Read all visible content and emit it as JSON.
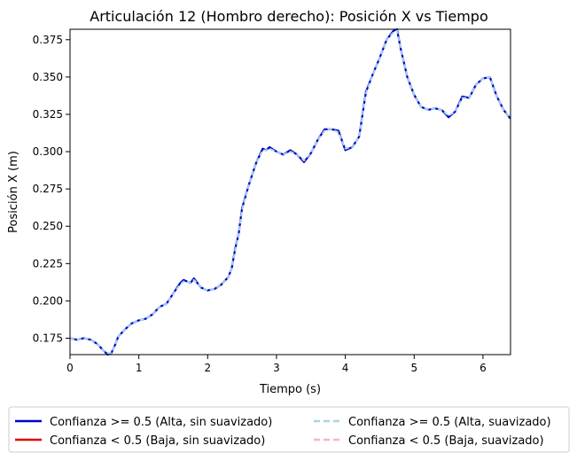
{
  "chart_data": {
    "type": "line",
    "title": "Articulación 12 (Hombro derecho): Posición X vs Tiempo",
    "xlabel": "Tiempo (s)",
    "ylabel": "Posición X (m)",
    "xlim": [
      0,
      6.4
    ],
    "ylim": [
      0.164,
      0.382
    ],
    "xticks": [
      0,
      1,
      2,
      3,
      4,
      5,
      6
    ],
    "xtick_labels": [
      "0",
      "1",
      "2",
      "3",
      "4",
      "5",
      "6"
    ],
    "yticks": [
      0.175,
      0.2,
      0.225,
      0.25,
      0.275,
      0.3,
      0.325,
      0.35,
      0.375
    ],
    "ytick_labels": [
      "0.175",
      "0.200",
      "0.225",
      "0.250",
      "0.275",
      "0.300",
      "0.325",
      "0.350",
      "0.375"
    ],
    "grid": false,
    "legend_position": "bottom, outside plot, 2 columns",
    "series": [
      {
        "name": "Confianza >= 0.5 (Alta, sin suavizado)",
        "color": "#0000cc",
        "style": "solid",
        "x": [
          0.0,
          0.1,
          0.2,
          0.3,
          0.4,
          0.5,
          0.55,
          0.6,
          0.65,
          0.7,
          0.8,
          0.9,
          1.0,
          1.1,
          1.2,
          1.3,
          1.4,
          1.5,
          1.6,
          1.65,
          1.7,
          1.75,
          1.8,
          1.85,
          1.9,
          2.0,
          2.1,
          2.2,
          2.3,
          2.35,
          2.4,
          2.45,
          2.5,
          2.6,
          2.7,
          2.8,
          2.85,
          2.9,
          3.0,
          3.1,
          3.2,
          3.3,
          3.4,
          3.5,
          3.6,
          3.7,
          3.75,
          3.8,
          3.9,
          4.0,
          4.1,
          4.2,
          4.3,
          4.4,
          4.5,
          4.6,
          4.7,
          4.75,
          4.8,
          4.9,
          5.0,
          5.1,
          5.2,
          5.3,
          5.4,
          5.5,
          5.6,
          5.7,
          5.8,
          5.9,
          6.0,
          6.1,
          6.2,
          6.3,
          6.4
        ],
        "y": [
          0.175,
          0.174,
          0.175,
          0.174,
          0.171,
          0.166,
          0.164,
          0.165,
          0.17,
          0.176,
          0.181,
          0.185,
          0.187,
          0.188,
          0.191,
          0.196,
          0.198,
          0.205,
          0.212,
          0.214,
          0.213,
          0.212,
          0.215,
          0.212,
          0.209,
          0.207,
          0.208,
          0.211,
          0.216,
          0.222,
          0.235,
          0.245,
          0.262,
          0.278,
          0.292,
          0.302,
          0.301,
          0.303,
          0.3,
          0.298,
          0.301,
          0.298,
          0.293,
          0.299,
          0.308,
          0.315,
          0.315,
          0.315,
          0.314,
          0.301,
          0.303,
          0.31,
          0.34,
          0.352,
          0.363,
          0.375,
          0.381,
          0.382,
          0.37,
          0.35,
          0.338,
          0.33,
          0.328,
          0.329,
          0.328,
          0.323,
          0.327,
          0.337,
          0.336,
          0.345,
          0.349,
          0.35,
          0.337,
          0.328,
          0.322
        ]
      },
      {
        "name": "Confianza < 0.5 (Baja, sin suavizado)",
        "color": "#e00000",
        "style": "solid",
        "x": [],
        "y": []
      },
      {
        "name": "Confianza >= 0.5 (Alta, suavizado)",
        "color": "#a8d4e6",
        "style": "dashed",
        "x": [
          0.0,
          0.1,
          0.2,
          0.3,
          0.4,
          0.5,
          0.55,
          0.6,
          0.65,
          0.7,
          0.8,
          0.9,
          1.0,
          1.1,
          1.2,
          1.3,
          1.4,
          1.5,
          1.6,
          1.65,
          1.7,
          1.75,
          1.8,
          1.85,
          1.9,
          2.0,
          2.1,
          2.2,
          2.3,
          2.35,
          2.4,
          2.45,
          2.5,
          2.6,
          2.7,
          2.8,
          2.85,
          2.9,
          3.0,
          3.1,
          3.2,
          3.3,
          3.4,
          3.5,
          3.6,
          3.7,
          3.75,
          3.8,
          3.9,
          4.0,
          4.1,
          4.2,
          4.3,
          4.4,
          4.5,
          4.6,
          4.7,
          4.75,
          4.8,
          4.9,
          5.0,
          5.1,
          5.2,
          5.3,
          5.4,
          5.5,
          5.6,
          5.7,
          5.8,
          5.9,
          6.0,
          6.1,
          6.2,
          6.3,
          6.4
        ],
        "y": [
          0.175,
          0.174,
          0.175,
          0.174,
          0.171,
          0.166,
          0.165,
          0.165,
          0.17,
          0.176,
          0.181,
          0.185,
          0.187,
          0.188,
          0.191,
          0.196,
          0.198,
          0.205,
          0.211,
          0.213,
          0.213,
          0.212,
          0.214,
          0.212,
          0.209,
          0.207,
          0.208,
          0.211,
          0.216,
          0.222,
          0.234,
          0.245,
          0.261,
          0.278,
          0.292,
          0.301,
          0.301,
          0.302,
          0.3,
          0.298,
          0.3,
          0.298,
          0.294,
          0.299,
          0.308,
          0.314,
          0.315,
          0.315,
          0.313,
          0.302,
          0.303,
          0.31,
          0.339,
          0.352,
          0.363,
          0.375,
          0.38,
          0.381,
          0.37,
          0.35,
          0.338,
          0.33,
          0.328,
          0.329,
          0.328,
          0.324,
          0.327,
          0.336,
          0.336,
          0.345,
          0.349,
          0.35,
          0.337,
          0.328,
          0.322
        ]
      },
      {
        "name": "Confianza < 0.5 (Baja, suavizado)",
        "color": "#f5b8c0",
        "style": "dashed",
        "x": [],
        "y": []
      }
    ]
  }
}
